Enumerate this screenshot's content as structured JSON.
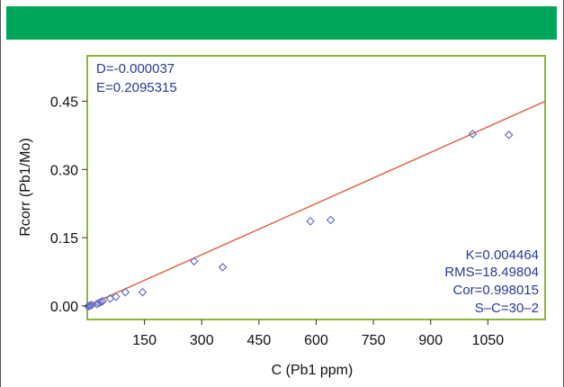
{
  "colors": {
    "header_band": "#00a65a",
    "plot_border": "#8db53a",
    "fit_line": "#e0674a",
    "points": "#6a6fc4",
    "annotation_text": "#2a3a9a"
  },
  "chart_data": {
    "type": "scatter",
    "title": "",
    "xlabel": "C (Pb1 ppm)",
    "ylabel": "Rcorr (Pb1/Mo)",
    "xlim": [
      0,
      1200
    ],
    "ylim": [
      -0.03,
      0.55
    ],
    "x_ticks": [
      150,
      300,
      450,
      600,
      750,
      900,
      1050
    ],
    "x_tick_labels": [
      "150",
      "300",
      "450",
      "600",
      "750",
      "900",
      "1050"
    ],
    "y_ticks": [
      0.0,
      0.15,
      0.3,
      0.45
    ],
    "y_tick_labels": [
      "0.00",
      "0.15",
      "0.30",
      "0.45"
    ],
    "grid": false,
    "series": [
      {
        "marker": "diamond",
        "points": [
          {
            "x": 2,
            "y": -0.001
          },
          {
            "x": 5,
            "y": 0.0
          },
          {
            "x": 8,
            "y": 0.001
          },
          {
            "x": 12,
            "y": 0.002
          },
          {
            "x": 25,
            "y": 0.004
          },
          {
            "x": 30,
            "y": 0.006
          },
          {
            "x": 35,
            "y": 0.008
          },
          {
            "x": 40,
            "y": 0.01
          },
          {
            "x": 60,
            "y": 0.016
          },
          {
            "x": 75,
            "y": 0.02
          },
          {
            "x": 100,
            "y": 0.03
          },
          {
            "x": 145,
            "y": 0.03
          },
          {
            "x": 280,
            "y": 0.098
          },
          {
            "x": 355,
            "y": 0.085
          },
          {
            "x": 585,
            "y": 0.186
          },
          {
            "x": 638,
            "y": 0.189
          },
          {
            "x": 1010,
            "y": 0.378
          },
          {
            "x": 1105,
            "y": 0.376
          }
        ]
      }
    ],
    "fit_line": {
      "x": [
        0,
        1200
      ],
      "y": [
        0.0,
        0.45
      ]
    },
    "annotations": {
      "top_left": [
        "D=-0.000037",
        "E=0.2095315"
      ],
      "bottom_right": [
        "K=0.004464",
        "RMS=18.49804",
        "Cor=0.998015",
        "S–C=30–2"
      ]
    }
  }
}
